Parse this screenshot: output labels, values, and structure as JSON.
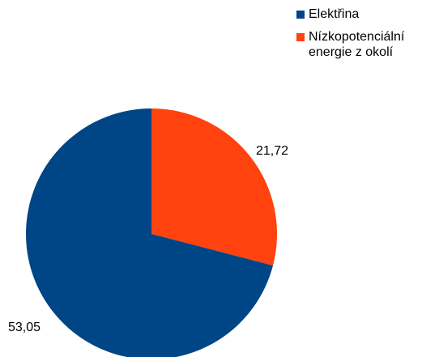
{
  "chart_data": {
    "type": "pie",
    "title": "",
    "legend_position": "top-right",
    "slices": [
      {
        "label": "Elektřina",
        "value": 53.05,
        "display": "53,05",
        "color": "#004586"
      },
      {
        "label": "Nízkopotenciální energie z okolí",
        "value": 21.72,
        "display": "21,72",
        "color": "#ff420e"
      }
    ]
  }
}
